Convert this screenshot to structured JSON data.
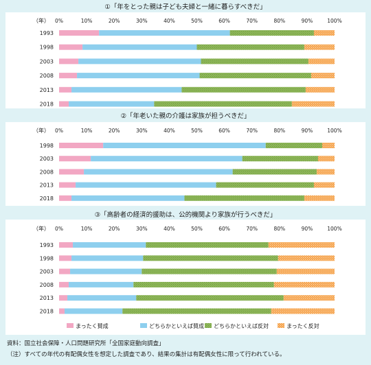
{
  "source_note": "資料：国立社会保障・人口問題研究所「全国家庭動向調査」",
  "footnote": "（注）すべての年代の有配偶女性を想定した調査であり、結果の集計は有配偶女性に限って行われている。",
  "colors": {
    "strongly_agree": "#f2a7c3",
    "somewhat_agree": "#8ecfee",
    "somewhat_disagree": "#8fb85a",
    "strongly_disagree": "#f5a24b",
    "panel_bg": "#ffffff",
    "page_bg": "#dff2f5"
  },
  "chart_data": [
    {
      "type": "bar",
      "orientation": "horizontal",
      "stacked": true,
      "title": "①「年をとった親は子ども夫婦と一緒に暮らすべきだ」",
      "year_unit": "（年）",
      "categories": [
        "1993",
        "1998",
        "2003",
        "2008",
        "2013",
        "2018"
      ],
      "xlim": [
        0,
        100
      ],
      "xticks": [
        "0%",
        "10%",
        "20%",
        "30%",
        "40%",
        "50%",
        "60%",
        "70%",
        "80%",
        "90%",
        "100%"
      ],
      "series": [
        {
          "name": "まったく賛成",
          "values": [
            14.5,
            8.5,
            7.0,
            6.5,
            4.5,
            3.5
          ]
        },
        {
          "name": "どちらかといえば賛成",
          "values": [
            47.5,
            41.5,
            44.5,
            44.5,
            40.0,
            31.0
          ]
        },
        {
          "name": "どちらかといえば反対",
          "values": [
            30.5,
            39.0,
            39.0,
            40.5,
            45.0,
            50.0
          ]
        },
        {
          "name": "まったく反対",
          "values": [
            7.5,
            11.0,
            9.5,
            8.5,
            10.5,
            15.5
          ]
        }
      ]
    },
    {
      "type": "bar",
      "orientation": "horizontal",
      "stacked": true,
      "title": "②「年老いた親の介護は家族が担うべきだ」",
      "year_unit": "（年）",
      "categories": [
        "1998",
        "2003",
        "2008",
        "2013",
        "2018"
      ],
      "xlim": [
        0,
        100
      ],
      "xticks": [
        "0%",
        "10%",
        "20%",
        "30%",
        "40%",
        "50%",
        "60%",
        "70%",
        "80%",
        "90%",
        "100%"
      ],
      "series": [
        {
          "name": "まったく賛成",
          "values": [
            16.0,
            11.5,
            9.0,
            6.0,
            4.5
          ]
        },
        {
          "name": "どちらかといえば賛成",
          "values": [
            59.0,
            55.0,
            54.0,
            51.0,
            41.0
          ]
        },
        {
          "name": "どちらかといえば反対",
          "values": [
            20.5,
            27.5,
            30.5,
            35.5,
            43.5
          ]
        },
        {
          "name": "まったく反対",
          "values": [
            4.5,
            6.0,
            6.5,
            7.5,
            11.0
          ]
        }
      ]
    },
    {
      "type": "bar",
      "orientation": "horizontal",
      "stacked": true,
      "title": "③「高齢者の経済的援助は、公的機関より家族が行うべきだ」",
      "year_unit": "（年）",
      "categories": [
        "1993",
        "1998",
        "2003",
        "2008",
        "2013",
        "2018"
      ],
      "xlim": [
        0,
        100
      ],
      "xticks": [
        "0%",
        "10%",
        "20%",
        "30%",
        "40%",
        "50%",
        "60%",
        "70%",
        "80%",
        "90%",
        "100%"
      ],
      "series": [
        {
          "name": "まったく賛成",
          "values": [
            5.0,
            4.5,
            4.0,
            3.5,
            3.0,
            2.0
          ]
        },
        {
          "name": "どちらかといえば賛成",
          "values": [
            26.5,
            26.0,
            26.0,
            23.5,
            25.0,
            21.0
          ]
        },
        {
          "name": "どちらかといえば反対",
          "values": [
            44.5,
            49.0,
            49.0,
            51.0,
            53.5,
            54.0
          ]
        },
        {
          "name": "まったく反対",
          "values": [
            24.0,
            20.5,
            21.0,
            22.0,
            18.5,
            23.0
          ]
        }
      ]
    }
  ],
  "legend": [
    {
      "label": "まったく賛成",
      "color_key": "strongly_agree"
    },
    {
      "label": "どちらかといえば賛成",
      "color_key": "somewhat_agree"
    },
    {
      "label": "どちらかといえば反対",
      "color_key": "somewhat_disagree"
    },
    {
      "label": "まったく反対",
      "color_key": "strongly_disagree"
    }
  ]
}
